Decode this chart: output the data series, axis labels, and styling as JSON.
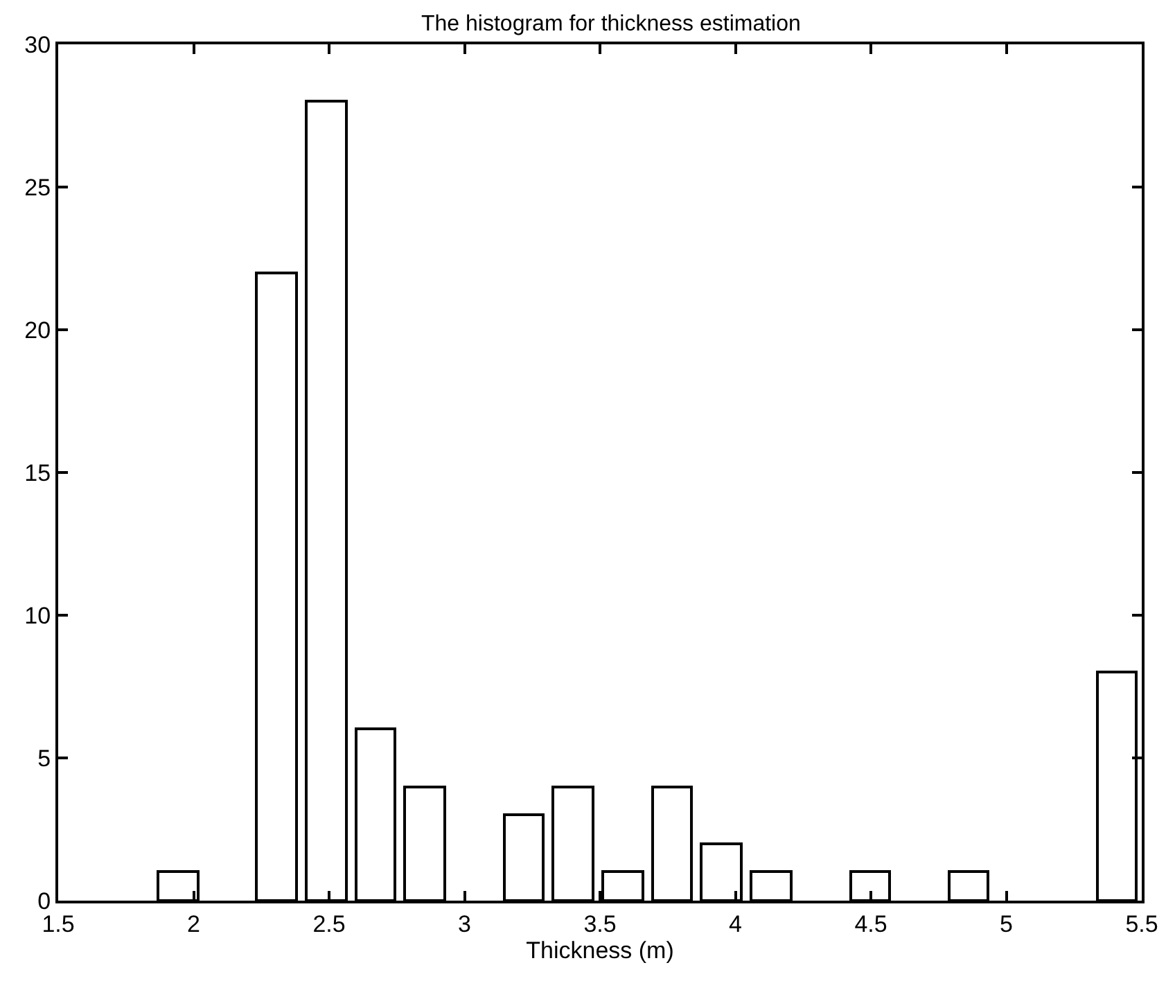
{
  "chart_data": {
    "type": "histogram",
    "title": "The histogram for thickness estimation",
    "xlabel": "Thickness (m)",
    "bins": [
      1.85,
      2.0325,
      2.215,
      2.3975,
      2.58,
      2.7625,
      2.945,
      3.1275,
      3.31,
      3.4925,
      3.675,
      3.8575,
      4.04,
      4.2225,
      4.405,
      4.5875,
      4.77,
      4.9525,
      5.135,
      5.3175,
      5.5
    ],
    "values": [
      1,
      0,
      22,
      28,
      6,
      4,
      0,
      3,
      4,
      1,
      4,
      2,
      1,
      0,
      1,
      0,
      1,
      0,
      0,
      8
    ],
    "color": "#ffffff",
    "xlim": [
      1.5,
      5.5
    ],
    "xticks": [
      1.5,
      2,
      2.5,
      3,
      3.5,
      4,
      4.5,
      5,
      5.5
    ],
    "ylim": [
      0,
      30
    ],
    "yticks": [
      0,
      5,
      10,
      15,
      20,
      25,
      30
    ]
  }
}
